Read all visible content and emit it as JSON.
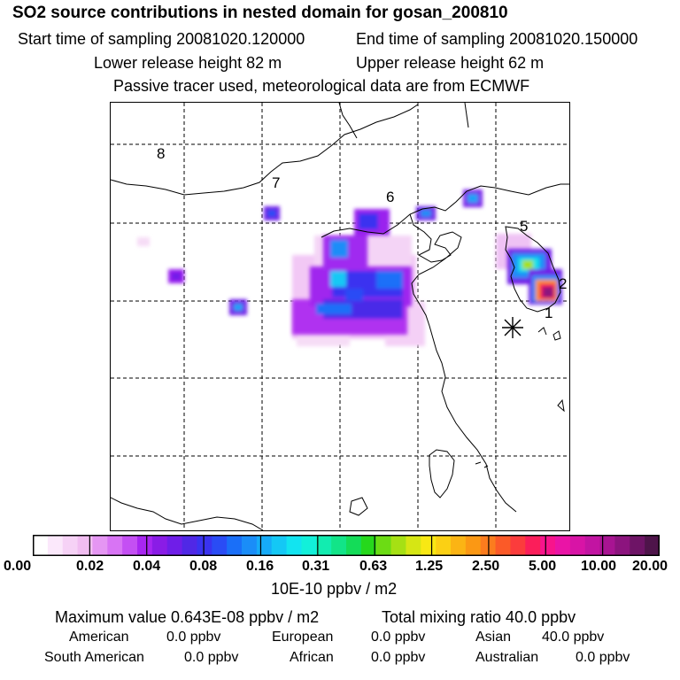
{
  "header": {
    "title": "SO2 source contributions in nested domain for gosan_200810",
    "start_time": "Start time of sampling 20081020.120000",
    "end_time": "End time of sampling 20081020.150000",
    "lower_height": "Lower release height   82 m",
    "upper_height": "Upper release height   62 m",
    "tracer_note": "Passive tracer used, meteorological data are from ECMWF"
  },
  "map": {
    "region_labels": [
      "1",
      "2",
      "5",
      "6",
      "7",
      "8"
    ],
    "receptor_marker": "asterisk-icon"
  },
  "colorbar": {
    "ticks": [
      "0.00",
      "0.02",
      "0.04",
      "0.08",
      "0.16",
      "0.31",
      "0.63",
      "1.25",
      "2.50",
      "5.00",
      "10.00",
      "20.00"
    ],
    "colors": [
      "#ffffff",
      "#fbe8fb",
      "#f6d2f6",
      "#f1bdf1",
      "#e596f3",
      "#d874f4",
      "#c44ff3",
      "#a826f1",
      "#8a1ce6",
      "#6f1ee8",
      "#5028e6",
      "#3a33f0",
      "#2a4cf5",
      "#1a6ff8",
      "#1a8df8",
      "#16abf8",
      "#14c8f5",
      "#12e4f0",
      "#12f0da",
      "#12ecb0",
      "#12e488",
      "#14dc58",
      "#26d81c",
      "#6cdc14",
      "#a6e014",
      "#d6e614",
      "#f8e814",
      "#fbd014",
      "#fbb414",
      "#fb9814",
      "#fb7c1e",
      "#fb5a28",
      "#fb3c3c",
      "#fb1e5a",
      "#f8148c",
      "#ea14a6",
      "#d814a6",
      "#c214a2",
      "#a81492",
      "#8c147e",
      "#6e1466",
      "#4e144a"
    ],
    "units": "10E-10 ppbv / m2"
  },
  "summary": {
    "max_value": "Maximum value  0.643E-08 ppbv / m2",
    "total": "Total mixing ratio      40.0 ppbv",
    "sources": [
      {
        "label": "American",
        "value": "0.0 ppbv"
      },
      {
        "label": "European",
        "value": "0.0 ppbv"
      },
      {
        "label": "Asian",
        "value": "40.0 ppbv"
      },
      {
        "label": "South American",
        "value": "0.0 ppbv"
      },
      {
        "label": "African",
        "value": "0.0 ppbv"
      },
      {
        "label": "Australian",
        "value": "0.0 ppbv"
      }
    ]
  }
}
